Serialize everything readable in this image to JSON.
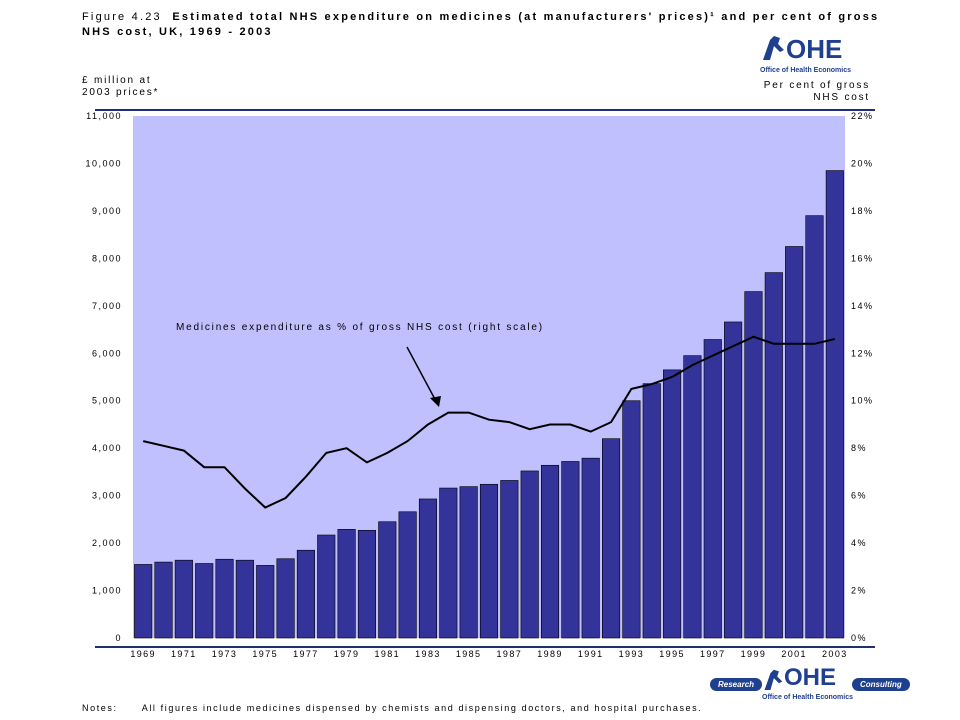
{
  "header": {
    "figure_label": "Figure 4.23",
    "title_line1": "Estimated total NHS expenditure on medicines (at manufacturers' prices)¹ and per cent of gross",
    "title_line2": "NHS cost, UK, 1969 - 2003"
  },
  "left_axis_label_line1": "£ million at",
  "left_axis_label_line2": "2003 prices*",
  "right_axis_label_line1": "Per cent of gross",
  "right_axis_label_line2": "NHS cost",
  "logo_top": {
    "text": "OHE",
    "subtitle": "Office of Health Economics"
  },
  "logo_bottom": {
    "text": "OHE",
    "subtitle": "Office of Health Economics",
    "left_pill": "Research",
    "right_pill": "Consulting"
  },
  "notes_label": "Notes:",
  "notes_text": "All figures include medicines dispensed by chemists and dispensing doctors, and hospital purchases.",
  "colors": {
    "plot_bg": "#c0c0ff",
    "bar_fill": "#333399",
    "line": "#000000",
    "rule": "#1f2f6f"
  },
  "chart_data": {
    "type": "bar",
    "title": "Estimated total NHS expenditure on medicines (at manufacturers' prices)¹ and per cent of gross NHS cost, UK, 1969 - 2003",
    "categories": [
      "1969",
      "1970",
      "1971",
      "1972",
      "1973",
      "1974",
      "1975",
      "1976",
      "1977",
      "1978",
      "1979",
      "1980",
      "1981",
      "1982",
      "1983",
      "1984",
      "1985",
      "1986",
      "1987",
      "1988",
      "1989",
      "1990",
      "1991",
      "1992",
      "1993",
      "1994",
      "1995",
      "1996",
      "1997",
      "1998",
      "1999",
      "2000",
      "2001",
      "2002",
      "2003"
    ],
    "x_tick_labels": [
      "1969",
      "1971",
      "1973",
      "1975",
      "1977",
      "1979",
      "1981",
      "1983",
      "1985",
      "1987",
      "1989",
      "1991",
      "1993",
      "1995",
      "1997",
      "1999",
      "2001",
      "2003"
    ],
    "series": [
      {
        "name": "",
        "axis": "left",
        "type": "bar",
        "values": [
          1550,
          1600,
          1640,
          1570,
          1660,
          1640,
          1530,
          1670,
          1850,
          2170,
          2290,
          2270,
          2450,
          2660,
          2930,
          3160,
          3190,
          3240,
          3320,
          3520,
          3640,
          3720,
          3790,
          4200,
          5000,
          5360,
          5650,
          5950,
          6290,
          6660,
          7300,
          7700,
          8250,
          8900,
          9850
        ]
      },
      {
        "name": "Medicines expenditure as % of gross NHS cost (right scale)",
        "axis": "right",
        "type": "line",
        "values": [
          8.3,
          8.1,
          7.9,
          7.2,
          7.2,
          6.3,
          5.5,
          5.9,
          6.8,
          7.8,
          8.0,
          7.4,
          7.8,
          8.3,
          9.0,
          9.5,
          9.5,
          9.2,
          9.1,
          8.8,
          9.0,
          9.0,
          8.7,
          9.1,
          10.5,
          10.7,
          11.0,
          11.5,
          11.9,
          12.3,
          12.7,
          12.4,
          12.4,
          12.4,
          12.6
        ]
      }
    ],
    "annotation": "Medicines expenditure as % of gross NHS cost (right scale)",
    "ylim": [
      0,
      11000
    ],
    "y_ticks": [
      "0",
      "1,000",
      "2,000",
      "3,000",
      "4,000",
      "5,000",
      "6,000",
      "7,000",
      "8,000",
      "9,000",
      "10,000",
      "11,000"
    ],
    "y2lim": [
      0,
      22
    ],
    "y2_ticks": [
      "0%",
      "2%",
      "4%",
      "6%",
      "8%",
      "10%",
      "12%",
      "14%",
      "16%",
      "18%",
      "20%",
      "22%"
    ],
    "grid": false
  }
}
